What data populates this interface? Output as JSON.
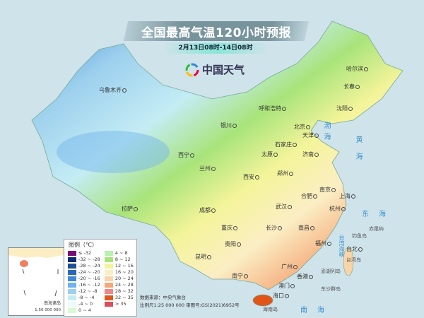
{
  "title": "全国最高气温120小时预报",
  "subtitle": "2月13日08时-14日08时",
  "logo": {
    "text": "中国天气",
    "icon": "swirl-logo-icon"
  },
  "legend": {
    "title": "图例（℃）",
    "items": [
      {
        "label": "≤ -32",
        "color": "#7a0a72"
      },
      {
        "label": "-32 ~ -28",
        "color": "#0d2a72"
      },
      {
        "label": "-28 ~ -24",
        "color": "#1f4f96"
      },
      {
        "label": "-24 ~ -20",
        "color": "#2a68b8"
      },
      {
        "label": "-20 ~ -16",
        "color": "#3f8ad6"
      },
      {
        "label": "-16 ~ -12",
        "color": "#6eb3ea"
      },
      {
        "label": "-12 ~ -8",
        "color": "#9dd0ee"
      },
      {
        "label": "-8 ~ -4",
        "color": "#c4ecf4"
      },
      {
        "label": "-4 ~ 0",
        "color": "#eefafb"
      },
      {
        "label": "0 ~ 4",
        "color": "#dcf8d4"
      },
      {
        "label": "4 ~ 8",
        "color": "#b8f0b0"
      },
      {
        "label": "8 ~ 12",
        "color": "#a8e47a"
      },
      {
        "label": "12 ~ 16",
        "color": "#f4f49a"
      },
      {
        "label": "16 ~ 20",
        "color": "#fbeec4"
      },
      {
        "label": "20 ~ 24",
        "color": "#f8d4a8"
      },
      {
        "label": "24 ~ 28",
        "color": "#f4a878"
      },
      {
        "label": "28 ~ 32",
        "color": "#ee8888"
      },
      {
        "label": "32 ~ 35",
        "color": "#e0561a"
      },
      {
        "label": "> 35",
        "color": "#d8505a"
      }
    ]
  },
  "source": {
    "line1": "数据来源：中央气象台",
    "line2": "比例尺1:25 000 000   审图号:GS(2021)6952号"
  },
  "inset": {
    "label": "南海诸岛",
    "scale": "1:50 000 000"
  },
  "cities": [
    {
      "name": "乌鲁木齐"
    },
    {
      "name": "哈尔滨"
    },
    {
      "name": "长春"
    },
    {
      "name": "沈阳"
    },
    {
      "name": "呼和浩特"
    },
    {
      "name": "北京"
    },
    {
      "name": "天津"
    },
    {
      "name": "石家庄"
    },
    {
      "name": "太原"
    },
    {
      "name": "济南"
    },
    {
      "name": "银川"
    },
    {
      "name": "西宁"
    },
    {
      "name": "兰州"
    },
    {
      "name": "西安"
    },
    {
      "name": "郑州"
    },
    {
      "name": "合肥"
    },
    {
      "name": "南京"
    },
    {
      "name": "上海"
    },
    {
      "name": "武汉"
    },
    {
      "name": "杭州"
    },
    {
      "name": "拉萨"
    },
    {
      "name": "成都"
    },
    {
      "name": "重庆"
    },
    {
      "name": "长沙"
    },
    {
      "name": "南昌"
    },
    {
      "name": "贵阳"
    },
    {
      "name": "昆明"
    },
    {
      "name": "南宁"
    },
    {
      "name": "广州"
    },
    {
      "name": "香港"
    },
    {
      "name": "澳门"
    },
    {
      "name": "福州"
    },
    {
      "name": "台北"
    },
    {
      "name": "海口"
    }
  ],
  "seas": {
    "bohai": "渤海",
    "huanghai": "黄海",
    "donghai": "东海",
    "nanhai": "南海",
    "strait": "台湾海峡"
  },
  "islands": {
    "taiwan": "台湾岛",
    "diaoyu": "钓鱼岛",
    "chiwei": "赤尾屿",
    "penghu": "澎湖列岛",
    "dongsha": "东沙群岛",
    "hainan": "海南岛"
  }
}
